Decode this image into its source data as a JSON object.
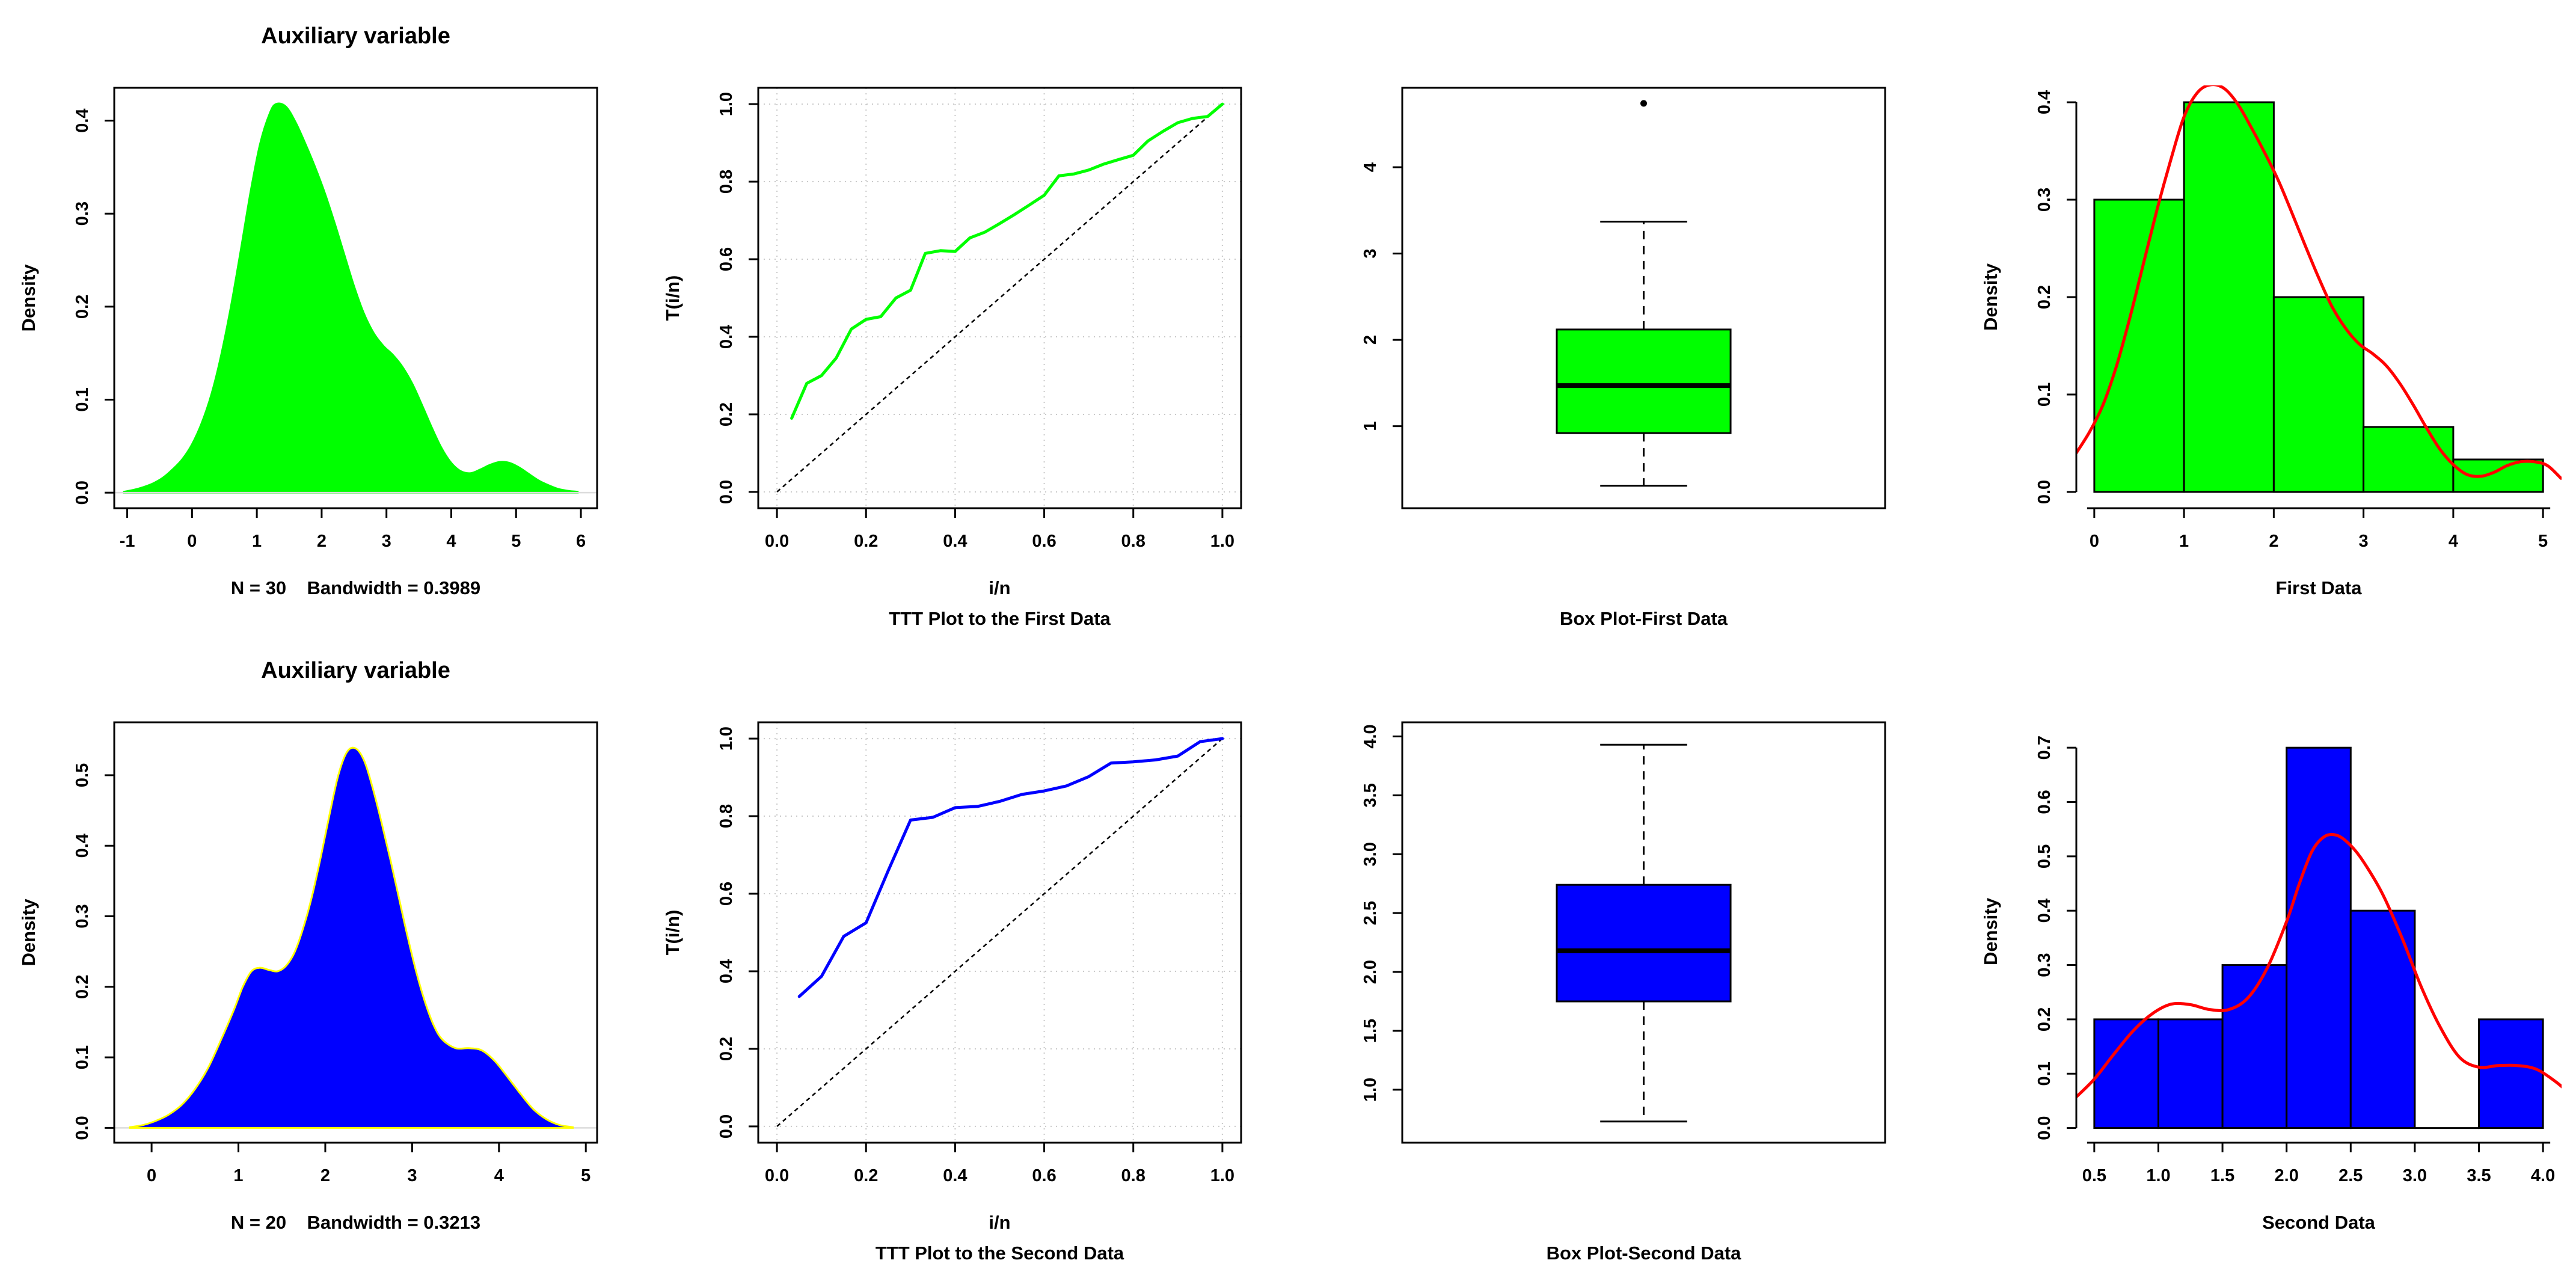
{
  "figure": {
    "background": "#FFFFFF",
    "rows": 2,
    "cols": 4,
    "panel_order": [
      "density-first",
      "ttt-first",
      "box-first",
      "hist-first",
      "density-second",
      "ttt-second",
      "box-second",
      "hist-second"
    ]
  },
  "palette": {
    "green": "#00FF00",
    "blue": "#0000FF",
    "red": "#FF0000",
    "yellow": "#FFFF00",
    "black": "#000000",
    "grid_gray": "#C9C9C9",
    "baseline_gray": "#DCDCDC"
  },
  "chart_data": [
    {
      "id": "density-first",
      "name": "kernel-density-plot-first-data",
      "type": "area",
      "title": "Auxiliary variable",
      "xlabel": "N = 30   Bandwidth = 0.3989",
      "ylabel": "Density",
      "xlim": [
        -1.2,
        6.25
      ],
      "ylim": [
        -0.0167,
        0.4353
      ],
      "xticks": {
        "values": [
          -1,
          0,
          1,
          2,
          3,
          4,
          5,
          6
        ],
        "labels": [
          "-1",
          "0",
          "1",
          "2",
          "3",
          "4",
          "5",
          "6"
        ]
      },
      "yticks": {
        "values": [
          0,
          0.1,
          0.2,
          0.3,
          0.4
        ],
        "labels": [
          "0.0",
          "0.1",
          "0.2",
          "0.3",
          "0.4"
        ]
      },
      "fill_color": "#00FF00",
      "border_color": "#00FF00",
      "baseline_color": "#DCDCDC",
      "baseline_over": true,
      "points": [
        [
          -1.05,
          0.001
        ],
        [
          -0.9,
          0.003
        ],
        [
          -0.75,
          0.006
        ],
        [
          -0.6,
          0.01
        ],
        [
          -0.45,
          0.016
        ],
        [
          -0.3,
          0.025
        ],
        [
          -0.15,
          0.036
        ],
        [
          0,
          0.052
        ],
        [
          0.15,
          0.075
        ],
        [
          0.3,
          0.106
        ],
        [
          0.45,
          0.148
        ],
        [
          0.6,
          0.2
        ],
        [
          0.75,
          0.26
        ],
        [
          0.9,
          0.322
        ],
        [
          1.05,
          0.375
        ],
        [
          1.2,
          0.408
        ],
        [
          1.3,
          0.418
        ],
        [
          1.45,
          0.415
        ],
        [
          1.6,
          0.398
        ],
        [
          1.75,
          0.375
        ],
        [
          1.9,
          0.35
        ],
        [
          2.05,
          0.322
        ],
        [
          2.2,
          0.29
        ],
        [
          2.35,
          0.256
        ],
        [
          2.5,
          0.222
        ],
        [
          2.65,
          0.193
        ],
        [
          2.8,
          0.172
        ],
        [
          2.95,
          0.158
        ],
        [
          3.1,
          0.148
        ],
        [
          3.25,
          0.135
        ],
        [
          3.4,
          0.117
        ],
        [
          3.55,
          0.094
        ],
        [
          3.7,
          0.07
        ],
        [
          3.85,
          0.048
        ],
        [
          4.0,
          0.032
        ],
        [
          4.15,
          0.023
        ],
        [
          4.3,
          0.021
        ],
        [
          4.45,
          0.025
        ],
        [
          4.6,
          0.03
        ],
        [
          4.75,
          0.033
        ],
        [
          4.9,
          0.032
        ],
        [
          5.05,
          0.027
        ],
        [
          5.2,
          0.02
        ],
        [
          5.35,
          0.013
        ],
        [
          5.5,
          0.008
        ],
        [
          5.65,
          0.004
        ],
        [
          5.8,
          0.002
        ],
        [
          5.95,
          0.001
        ]
      ]
    },
    {
      "id": "ttt-first",
      "name": "ttt-plot-first-data",
      "type": "line",
      "title": "",
      "xlabel": "i/n",
      "sub_caption": "TTT Plot to the First Data",
      "ylabel": "T(i/n)",
      "xlim": [
        -0.042,
        1.042
      ],
      "ylim": [
        -0.042,
        1.042
      ],
      "xticks": {
        "values": [
          0,
          0.2,
          0.4,
          0.6,
          0.8,
          1.0
        ],
        "labels": [
          "0.0",
          "0.2",
          "0.4",
          "0.6",
          "0.8",
          "1.0"
        ]
      },
      "yticks": {
        "values": [
          0,
          0.2,
          0.4,
          0.6,
          0.8,
          1.0
        ],
        "labels": [
          "0.0",
          "0.2",
          "0.4",
          "0.6",
          "0.8",
          "1.0"
        ]
      },
      "grid": true,
      "diagonal": true,
      "line_color": "#00FF00",
      "points": [
        [
          0.033,
          0.19
        ],
        [
          0.067,
          0.28
        ],
        [
          0.1,
          0.3
        ],
        [
          0.133,
          0.345
        ],
        [
          0.167,
          0.42
        ],
        [
          0.2,
          0.445
        ],
        [
          0.233,
          0.452
        ],
        [
          0.267,
          0.5
        ],
        [
          0.3,
          0.52
        ],
        [
          0.333,
          0.615
        ],
        [
          0.367,
          0.622
        ],
        [
          0.4,
          0.62
        ],
        [
          0.433,
          0.655
        ],
        [
          0.467,
          0.67
        ],
        [
          0.5,
          0.692
        ],
        [
          0.533,
          0.715
        ],
        [
          0.567,
          0.74
        ],
        [
          0.6,
          0.765
        ],
        [
          0.633,
          0.815
        ],
        [
          0.667,
          0.82
        ],
        [
          0.7,
          0.83
        ],
        [
          0.733,
          0.845
        ],
        [
          0.767,
          0.857
        ],
        [
          0.8,
          0.868
        ],
        [
          0.833,
          0.905
        ],
        [
          0.867,
          0.93
        ],
        [
          0.9,
          0.952
        ],
        [
          0.933,
          0.963
        ],
        [
          0.967,
          0.968
        ],
        [
          1.0,
          1.0
        ]
      ]
    },
    {
      "id": "box-first",
      "name": "box-plot-first-data",
      "type": "box",
      "caption": "Box Plot-First Data",
      "xlim": [
        0,
        1
      ],
      "ylim": [
        0.05,
        4.92
      ],
      "xticks": {
        "values": [],
        "labels": []
      },
      "yticks": {
        "values": [
          1,
          2,
          3,
          4
        ],
        "labels": [
          "1",
          "2",
          "3",
          "4"
        ]
      },
      "fill_color": "#00FF00",
      "box_geometry": {
        "center": 0.5,
        "box_half": 0.18,
        "cap_half": 0.09
      },
      "stats": {
        "low": 0.31,
        "q1": 0.92,
        "median": 1.47,
        "q3": 2.12,
        "high": 3.37,
        "outliers": [
          4.74
        ]
      }
    },
    {
      "id": "hist-first",
      "name": "histogram-first-data",
      "type": "bar",
      "xlabel": "First Data",
      "ylabel": "Density",
      "xlim": [
        -0.2,
        5.2
      ],
      "ylim": [
        -0.0167,
        0.4167
      ],
      "xticks": {
        "values": [
          0,
          1,
          2,
          3,
          4,
          5
        ],
        "labels": [
          "0",
          "1",
          "2",
          "3",
          "4",
          "5"
        ]
      },
      "yticks": {
        "values": [
          0,
          0.1,
          0.2,
          0.3,
          0.4
        ],
        "labels": [
          "0.0",
          "0.1",
          "0.2",
          "0.3",
          "0.4"
        ]
      },
      "bin_start": 0,
      "bin_width": 1,
      "values": [
        0.3,
        0.4,
        0.2,
        0.0667,
        0.0333
      ],
      "fill_color": "#00FF00",
      "curve_color": "#FF0000",
      "curve": [
        [
          -0.2,
          0.04
        ],
        [
          -0.05,
          0.062
        ],
        [
          0.1,
          0.09
        ],
        [
          0.25,
          0.13
        ],
        [
          0.4,
          0.18
        ],
        [
          0.55,
          0.235
        ],
        [
          0.7,
          0.29
        ],
        [
          0.85,
          0.34
        ],
        [
          1.0,
          0.385
        ],
        [
          1.15,
          0.41
        ],
        [
          1.3,
          0.418
        ],
        [
          1.45,
          0.414
        ],
        [
          1.6,
          0.398
        ],
        [
          1.75,
          0.374
        ],
        [
          1.9,
          0.348
        ],
        [
          2.05,
          0.32
        ],
        [
          2.2,
          0.287
        ],
        [
          2.35,
          0.253
        ],
        [
          2.5,
          0.22
        ],
        [
          2.65,
          0.19
        ],
        [
          2.8,
          0.168
        ],
        [
          2.95,
          0.152
        ],
        [
          3.1,
          0.142
        ],
        [
          3.25,
          0.13
        ],
        [
          3.4,
          0.112
        ],
        [
          3.55,
          0.09
        ],
        [
          3.7,
          0.066
        ],
        [
          3.85,
          0.044
        ],
        [
          4.0,
          0.028
        ],
        [
          4.15,
          0.018
        ],
        [
          4.3,
          0.016
        ],
        [
          4.45,
          0.02
        ],
        [
          4.6,
          0.027
        ],
        [
          4.75,
          0.031
        ],
        [
          4.9,
          0.031
        ],
        [
          5.05,
          0.027
        ],
        [
          5.2,
          0.014
        ]
      ]
    },
    {
      "id": "density-second",
      "name": "kernel-density-plot-second-data",
      "type": "area",
      "title": "Auxiliary variable",
      "xlabel": "N = 20   Bandwidth = 0.3213",
      "ylabel": "Density",
      "xlim": [
        -0.43,
        5.13
      ],
      "ylim": [
        -0.021,
        0.575
      ],
      "xticks": {
        "values": [
          0,
          1,
          2,
          3,
          4,
          5
        ],
        "labels": [
          "0",
          "1",
          "2",
          "3",
          "4",
          "5"
        ]
      },
      "yticks": {
        "values": [
          0,
          0.1,
          0.2,
          0.3,
          0.4,
          0.5
        ],
        "labels": [
          "0.0",
          "0.1",
          "0.2",
          "0.3",
          "0.4",
          "0.5"
        ]
      },
      "fill_color": "#0000FF",
      "border_color": "#FFFF00",
      "baseline_color": "#DCDCDC",
      "baseline_over": false,
      "points": [
        [
          -0.25,
          0.001
        ],
        [
          -0.1,
          0.004
        ],
        [
          0.05,
          0.01
        ],
        [
          0.2,
          0.019
        ],
        [
          0.35,
          0.033
        ],
        [
          0.5,
          0.055
        ],
        [
          0.65,
          0.085
        ],
        [
          0.8,
          0.125
        ],
        [
          0.95,
          0.168
        ],
        [
          1.05,
          0.2
        ],
        [
          1.15,
          0.222
        ],
        [
          1.25,
          0.227
        ],
        [
          1.35,
          0.224
        ],
        [
          1.45,
          0.222
        ],
        [
          1.55,
          0.23
        ],
        [
          1.65,
          0.25
        ],
        [
          1.75,
          0.285
        ],
        [
          1.85,
          0.33
        ],
        [
          1.95,
          0.385
        ],
        [
          2.05,
          0.445
        ],
        [
          2.15,
          0.5
        ],
        [
          2.25,
          0.533
        ],
        [
          2.35,
          0.538
        ],
        [
          2.45,
          0.52
        ],
        [
          2.55,
          0.48
        ],
        [
          2.65,
          0.432
        ],
        [
          2.75,
          0.38
        ],
        [
          2.85,
          0.325
        ],
        [
          2.95,
          0.27
        ],
        [
          3.05,
          0.22
        ],
        [
          3.15,
          0.178
        ],
        [
          3.25,
          0.145
        ],
        [
          3.35,
          0.125
        ],
        [
          3.5,
          0.113
        ],
        [
          3.65,
          0.113
        ],
        [
          3.8,
          0.11
        ],
        [
          3.95,
          0.095
        ],
        [
          4.1,
          0.072
        ],
        [
          4.25,
          0.048
        ],
        [
          4.4,
          0.026
        ],
        [
          4.55,
          0.012
        ],
        [
          4.7,
          0.004
        ],
        [
          4.85,
          0.001
        ]
      ]
    },
    {
      "id": "ttt-second",
      "name": "ttt-plot-second-data",
      "type": "line",
      "title": "",
      "xlabel": "i/n",
      "sub_caption": "TTT Plot to the Second Data",
      "ylabel": "T(i/n)",
      "xlim": [
        -0.042,
        1.042
      ],
      "ylim": [
        -0.042,
        1.042
      ],
      "xticks": {
        "values": [
          0,
          0.2,
          0.4,
          0.6,
          0.8,
          1.0
        ],
        "labels": [
          "0.0",
          "0.2",
          "0.4",
          "0.6",
          "0.8",
          "1.0"
        ]
      },
      "yticks": {
        "values": [
          0,
          0.2,
          0.4,
          0.6,
          0.8,
          1.0
        ],
        "labels": [
          "0.0",
          "0.2",
          "0.4",
          "0.6",
          "0.8",
          "1.0"
        ]
      },
      "grid": true,
      "diagonal": true,
      "line_color": "#0000FF",
      "points": [
        [
          0.05,
          0.335
        ],
        [
          0.1,
          0.387
        ],
        [
          0.15,
          0.49
        ],
        [
          0.2,
          0.525
        ],
        [
          0.25,
          0.66
        ],
        [
          0.3,
          0.79
        ],
        [
          0.35,
          0.797
        ],
        [
          0.4,
          0.822
        ],
        [
          0.45,
          0.825
        ],
        [
          0.5,
          0.838
        ],
        [
          0.55,
          0.856
        ],
        [
          0.6,
          0.865
        ],
        [
          0.65,
          0.878
        ],
        [
          0.7,
          0.902
        ],
        [
          0.75,
          0.937
        ],
        [
          0.8,
          0.94
        ],
        [
          0.85,
          0.945
        ],
        [
          0.9,
          0.955
        ],
        [
          0.95,
          0.992
        ],
        [
          1.0,
          1.0
        ]
      ]
    },
    {
      "id": "box-second",
      "name": "box-plot-second-data",
      "type": "box",
      "caption": "Box Plot-Second Data",
      "xlim": [
        0,
        1
      ],
      "ylim": [
        0.55,
        4.12
      ],
      "xticks": {
        "values": [],
        "labels": []
      },
      "yticks": {
        "values": [
          1.0,
          1.5,
          2.0,
          2.5,
          3.0,
          3.5,
          4.0
        ],
        "labels": [
          "1.0",
          "1.5",
          "2.0",
          "2.5",
          "3.0",
          "3.5",
          "4.0"
        ]
      },
      "fill_color": "#0000FF",
      "box_geometry": {
        "center": 0.5,
        "box_half": 0.18,
        "cap_half": 0.09
      },
      "stats": {
        "low": 0.73,
        "q1": 1.75,
        "median": 2.18,
        "q3": 2.74,
        "high": 3.93,
        "outliers": []
      }
    },
    {
      "id": "hist-second",
      "name": "histogram-second-data",
      "type": "bar",
      "xlabel": "Second Data",
      "ylabel": "Density",
      "xlim": [
        0.36,
        4.14
      ],
      "ylim": [
        -0.027,
        0.75
      ],
      "xticks": {
        "values": [
          0.5,
          1.0,
          1.5,
          2.0,
          2.5,
          3.0,
          3.5,
          4.0
        ],
        "labels": [
          "0.5",
          "1.0",
          "1.5",
          "2.0",
          "2.5",
          "3.0",
          "3.5",
          "4.0"
        ]
      },
      "yticks": {
        "values": [
          0,
          0.1,
          0.2,
          0.3,
          0.4,
          0.5,
          0.6,
          0.7
        ],
        "labels": [
          "0.0",
          "0.1",
          "0.2",
          "0.3",
          "0.4",
          "0.5",
          "0.6",
          "0.7"
        ]
      },
      "bin_start": 0.5,
      "bin_width": 0.5,
      "values": [
        0.2,
        0.2,
        0.3,
        0.7,
        0.4,
        0,
        0.2
      ],
      "fill_color": "#0000FF",
      "curve_color": "#FF0000",
      "curve": [
        [
          0.35,
          0.055
        ],
        [
          0.5,
          0.09
        ],
        [
          0.65,
          0.135
        ],
        [
          0.8,
          0.178
        ],
        [
          0.95,
          0.21
        ],
        [
          1.1,
          0.228
        ],
        [
          1.25,
          0.227
        ],
        [
          1.4,
          0.218
        ],
        [
          1.55,
          0.218
        ],
        [
          1.7,
          0.24
        ],
        [
          1.85,
          0.295
        ],
        [
          2.0,
          0.38
        ],
        [
          2.1,
          0.45
        ],
        [
          2.2,
          0.51
        ],
        [
          2.3,
          0.537
        ],
        [
          2.4,
          0.538
        ],
        [
          2.5,
          0.52
        ],
        [
          2.6,
          0.49
        ],
        [
          2.75,
          0.43
        ],
        [
          2.9,
          0.35
        ],
        [
          3.05,
          0.26
        ],
        [
          3.2,
          0.185
        ],
        [
          3.35,
          0.13
        ],
        [
          3.5,
          0.112
        ],
        [
          3.65,
          0.115
        ],
        [
          3.8,
          0.115
        ],
        [
          3.95,
          0.108
        ],
        [
          4.1,
          0.085
        ],
        [
          4.2,
          0.065
        ]
      ]
    }
  ]
}
